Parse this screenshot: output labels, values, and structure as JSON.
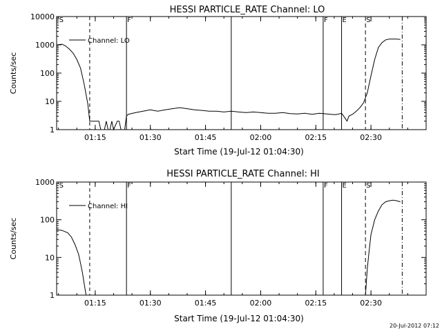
{
  "stamp": "20-Jul-2012 07:12",
  "chart_data": [
    {
      "type": "line",
      "title": "HESSI PARTICLE_RATE Channel: LO",
      "xlabel": "Start Time (19-Jul-12 01:04:30)",
      "ylabel": "Counts/sec",
      "y_scale": "log",
      "ylim": [
        1,
        10000
      ],
      "xlim": [
        "01:04:30",
        "02:45:00"
      ],
      "x_ticks": [
        "01:15",
        "01:30",
        "01:45",
        "02:00",
        "02:15",
        "02:30"
      ],
      "y_ticks": [
        "1",
        "10",
        "100",
        "1000",
        "10000"
      ],
      "legend": {
        "placement": "top-left",
        "entries": [
          "Channel: LO"
        ]
      },
      "markers": [
        {
          "label": "S",
          "x": "01:05:00",
          "style": "none"
        },
        {
          "label": "",
          "x": "01:13:30",
          "style": "dashed"
        },
        {
          "label": "F",
          "x": "01:23:30",
          "style": "solid"
        },
        {
          "label": "",
          "x": "01:52:00",
          "style": "solid"
        },
        {
          "label": "F",
          "x": "02:17:00",
          "style": "solid"
        },
        {
          "label": "E",
          "x": "02:22:00",
          "style": "solid"
        },
        {
          "label": "S",
          "x": "02:28:30",
          "style": "dashdot-dashed"
        },
        {
          "label": "",
          "x": "02:38:30",
          "style": "dashdot"
        }
      ],
      "series": [
        {
          "name": "Channel: LO",
          "x": [
            "01:04:30",
            "01:06:00",
            "01:07:00",
            "01:08:00",
            "01:09:00",
            "01:10:00",
            "01:11:00",
            "01:12:00",
            "01:13:00",
            "01:13:30",
            "01:14:00",
            "01:15:00",
            "01:16:00",
            "01:16:30",
            "01:17:00",
            "01:17:30",
            "01:18:00",
            "01:18:30",
            "01:19:00",
            "01:19:30",
            "01:20:00",
            "01:21:00",
            "01:21:30",
            "01:22:00",
            "01:23:00",
            "01:23:30",
            "01:24:00",
            "01:26:00",
            "01:28:00",
            "01:30:00",
            "01:32:00",
            "01:34:00",
            "01:36:00",
            "01:38:00",
            "01:40:00",
            "01:42:00",
            "01:44:00",
            "01:46:00",
            "01:48:00",
            "01:50:00",
            "01:52:00",
            "01:54:00",
            "01:56:00",
            "01:58:00",
            "02:00:00",
            "02:02:00",
            "02:04:00",
            "02:06:00",
            "02:08:00",
            "02:10:00",
            "02:12:00",
            "02:14:00",
            "02:16:00",
            "02:18:00",
            "02:20:00",
            "02:21:00",
            "02:22:00",
            "02:23:00",
            "02:23:30",
            "02:24:00",
            "02:25:00",
            "02:26:00",
            "02:27:00",
            "02:28:00",
            "02:29:00",
            "02:30:00",
            "02:31:00",
            "02:32:00",
            "02:33:00",
            "02:34:00",
            "02:35:00",
            "02:36:00",
            "02:37:00",
            "02:38:00"
          ],
          "values": [
            1000,
            1050,
            900,
            700,
            500,
            300,
            150,
            40,
            8,
            2,
            2,
            2,
            2,
            1,
            1,
            1,
            2,
            1,
            1,
            2,
            1,
            2,
            2,
            1,
            1,
            3,
            3.5,
            4,
            4.5,
            5,
            4.5,
            5,
            5.5,
            6,
            5.5,
            5,
            4.8,
            4.5,
            4.5,
            4.2,
            4.5,
            4.2,
            4,
            4.2,
            4,
            3.8,
            3.8,
            4,
            3.7,
            3.6,
            3.8,
            3.5,
            3.8,
            3.6,
            3.4,
            3.5,
            3.8,
            2.5,
            2,
            3,
            3.5,
            4.5,
            6,
            9,
            20,
            80,
            300,
            800,
            1200,
            1500,
            1600,
            1600,
            1600,
            1550
          ]
        }
      ]
    },
    {
      "type": "line",
      "title": "HESSI PARTICLE_RATE Channel: HI",
      "xlabel": "Start Time (19-Jul-12 01:04:30)",
      "ylabel": "Counts/sec",
      "y_scale": "log",
      "ylim": [
        1,
        1000
      ],
      "xlim": [
        "01:04:30",
        "02:45:00"
      ],
      "x_ticks": [
        "01:15",
        "01:30",
        "01:45",
        "02:00",
        "02:15",
        "02:30"
      ],
      "y_ticks": [
        "1",
        "10",
        "100",
        "1000"
      ],
      "legend": {
        "placement": "top-left",
        "entries": [
          "Channel: HI"
        ]
      },
      "markers": [
        {
          "label": "S",
          "x": "01:05:00",
          "style": "none"
        },
        {
          "label": "",
          "x": "01:13:30",
          "style": "dashed"
        },
        {
          "label": "F",
          "x": "01:23:30",
          "style": "solid"
        },
        {
          "label": "",
          "x": "01:52:00",
          "style": "solid"
        },
        {
          "label": "F",
          "x": "02:17:00",
          "style": "solid"
        },
        {
          "label": "E",
          "x": "02:22:00",
          "style": "solid"
        },
        {
          "label": "S",
          "x": "02:28:30",
          "style": "dashdot-dashed"
        },
        {
          "label": "",
          "x": "02:38:30",
          "style": "dashdot"
        }
      ],
      "series": [
        {
          "name": "Channel: HI",
          "x": [
            "01:04:30",
            "01:06:00",
            "01:07:30",
            "01:08:30",
            "01:09:30",
            "01:10:30",
            "01:11:00",
            "01:11:30",
            "01:12:00",
            "01:12:30",
            "02:28:30",
            "02:29:00",
            "02:29:30",
            "02:30:00",
            "02:31:00",
            "02:32:00",
            "02:33:00",
            "02:34:00",
            "02:35:00",
            "02:36:00",
            "02:37:00",
            "02:38:00"
          ],
          "values": [
            55,
            52,
            45,
            35,
            22,
            12,
            7,
            4,
            2,
            1,
            1,
            5,
            15,
            40,
            100,
            170,
            250,
            300,
            320,
            330,
            320,
            300
          ]
        }
      ]
    }
  ]
}
